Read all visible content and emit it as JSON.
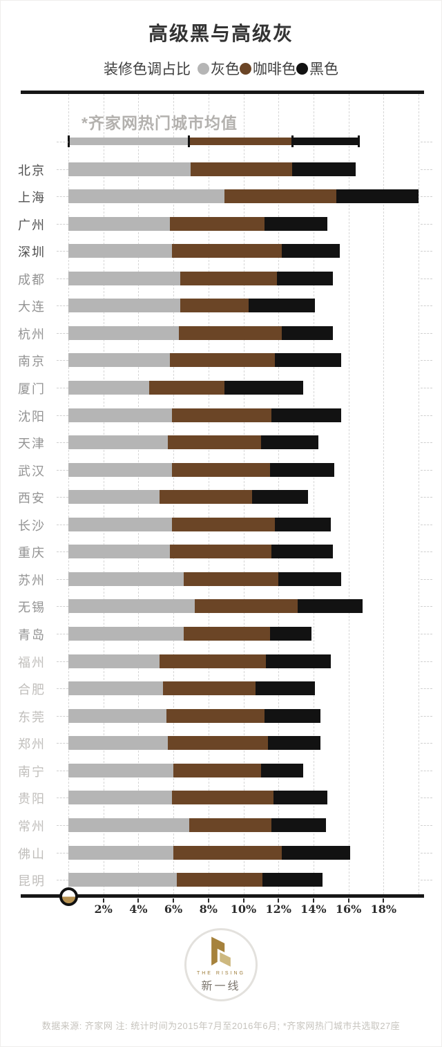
{
  "page": {
    "title": "高级黑与高级灰"
  },
  "legend": {
    "prefix": "装修色调占比",
    "items": [
      {
        "label": "灰色",
        "color": "#b5b5b5"
      },
      {
        "label": "咖啡色",
        "color": "#6b4526"
      },
      {
        "label": "黑色",
        "color": "#121212"
      }
    ]
  },
  "average": {
    "label": "*齐家网热门城市均值",
    "gray": 6.9,
    "coffee": 5.9,
    "black": 3.8
  },
  "chart_data": {
    "type": "bar",
    "variant": "horizontal-stacked",
    "unit": "percent",
    "xlim": [
      0,
      20
    ],
    "x_tick_labels": [
      "2%",
      "4%",
      "6%",
      "8%",
      "10%",
      "12%",
      "14%",
      "16%",
      "18%"
    ],
    "grid": "dashed vertical line every 2%",
    "categories": [
      "北京",
      "上海",
      "广州",
      "深圳",
      "成都",
      "大连",
      "杭州",
      "南京",
      "厦门",
      "沈阳",
      "天津",
      "武汉",
      "西安",
      "长沙",
      "重庆",
      "苏州",
      "无锡",
      "青岛",
      "福州",
      "合肥",
      "东莞",
      "郑州",
      "南宁",
      "贵阳",
      "常州",
      "佛山",
      "昆明"
    ],
    "category_tiers": [
      "dark",
      "dark",
      "dark",
      "dark",
      "mid",
      "mid",
      "mid",
      "mid",
      "mid",
      "mid",
      "mid",
      "mid",
      "mid",
      "mid",
      "mid",
      "mid",
      "mid",
      "mid",
      "light",
      "light",
      "light",
      "light",
      "light",
      "light",
      "light",
      "light",
      "light"
    ],
    "series": [
      {
        "name": "灰色",
        "color": "#b5b5b5",
        "values": [
          7.0,
          8.9,
          5.8,
          5.9,
          6.4,
          6.4,
          6.3,
          5.8,
          4.6,
          5.9,
          5.7,
          5.9,
          5.2,
          5.9,
          5.8,
          6.6,
          7.2,
          6.6,
          5.2,
          5.4,
          5.6,
          5.7,
          6.0,
          5.9,
          6.9,
          6.0,
          6.2
        ]
      },
      {
        "name": "咖啡色",
        "color": "#6b4526",
        "values": [
          5.8,
          6.4,
          5.4,
          6.3,
          5.5,
          3.9,
          5.9,
          6.0,
          4.3,
          5.7,
          5.3,
          5.6,
          5.3,
          5.9,
          5.8,
          5.4,
          5.9,
          4.9,
          6.1,
          5.3,
          5.6,
          5.7,
          5.0,
          5.8,
          4.7,
          6.2,
          4.9
        ]
      },
      {
        "name": "黑色",
        "color": "#121212",
        "values": [
          3.6,
          4.7,
          3.6,
          3.3,
          3.2,
          3.8,
          2.9,
          3.8,
          4.5,
          4.0,
          3.3,
          3.7,
          3.2,
          3.2,
          3.5,
          3.6,
          3.7,
          2.4,
          3.7,
          3.4,
          3.2,
          3.0,
          2.4,
          3.1,
          3.1,
          3.9,
          3.4
        ]
      }
    ],
    "reference_row": {
      "label": "*齐家网热门城市均值",
      "values": [
        6.9,
        5.9,
        3.8
      ]
    }
  },
  "palette": {
    "tier_dark": "#4f4f4f",
    "tier_mid": "#939393",
    "tier_light": "#c0bebb",
    "grid": "#d6d6d6",
    "axis": "#161616",
    "gold_dark": "#a6823c",
    "gold_light": "#cdb87f",
    "marker_gold": "#b69150"
  },
  "logo": {
    "en": "THE RISING",
    "zh": "新一线"
  },
  "footer": {
    "source": "数据来源: 齐家网  注: 统计时间为2015年7月至2016年6月; *齐家网热门城市共选取27座"
  }
}
